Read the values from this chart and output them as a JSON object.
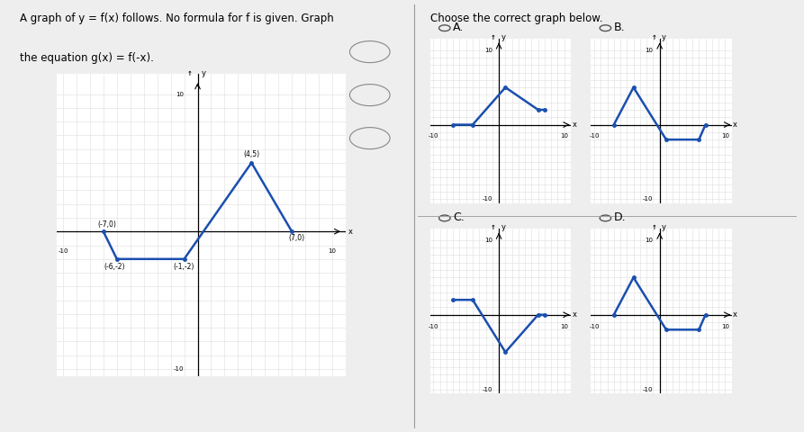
{
  "title_line1": "A graph of y = f(x) follows. No formula for f is given. Graph",
  "title_line2": "the equation g(x) = f(-x).",
  "choose_text": "Choose the correct graph below.",
  "bg_color": "#e8e8e8",
  "line_color": "#1a4faf",
  "line_width": 1.8,
  "fx_points": [
    [
      -7,
      0
    ],
    [
      -6,
      -2
    ],
    [
      -1,
      -2
    ],
    [
      4,
      5
    ],
    [
      7,
      0
    ]
  ],
  "fx_labels": [
    [
      "(-7,0)",
      -7,
      0,
      3,
      4
    ],
    [
      "(-6,-2)",
      -6,
      -2,
      -2,
      -8
    ],
    [
      "(-1,-2)",
      -1,
      -2,
      0,
      -8
    ],
    [
      "(4,5)",
      4,
      5,
      0,
      5
    ],
    [
      "(7,0)",
      7,
      0,
      4,
      -7
    ]
  ],
  "gA_points": [
    [
      -7,
      0
    ],
    [
      -4,
      0
    ],
    [
      1,
      5
    ],
    [
      6,
      2
    ],
    [
      7,
      2
    ]
  ],
  "gB_points": [
    [
      -7,
      0
    ],
    [
      -4,
      5
    ],
    [
      1,
      -2
    ],
    [
      6,
      -2
    ],
    [
      7,
      0
    ]
  ],
  "gC_points": [
    [
      -7,
      2
    ],
    [
      -4,
      2
    ],
    [
      1,
      -5
    ],
    [
      6,
      0
    ],
    [
      7,
      0
    ]
  ],
  "gD_points": [
    [
      -7,
      0
    ],
    [
      -4,
      5
    ],
    [
      1,
      -2
    ],
    [
      6,
      -2
    ],
    [
      7,
      0
    ]
  ],
  "grid_color": "#bbbbbb",
  "grid_color2": "#dddddd"
}
